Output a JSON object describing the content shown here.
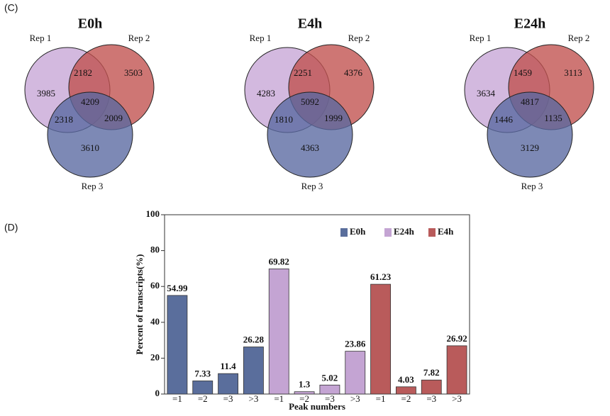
{
  "panel_labels": [
    "(C)",
    "(D)"
  ],
  "chart_data": [
    {
      "type": "venn",
      "title": "E0h",
      "sets": [
        "Rep 1",
        "Rep 2",
        "Rep 3"
      ],
      "colors": [
        "#c6a5d6",
        "#c0504d",
        "#5868a0"
      ],
      "values": {
        "1": 3985,
        "2": 3503,
        "3": 3610,
        "12": 2182,
        "13": 2318,
        "23": 2009,
        "123": 4209
      }
    },
    {
      "type": "venn",
      "title": "E4h",
      "sets": [
        "Rep 1",
        "Rep 2",
        "Rep 3"
      ],
      "colors": [
        "#c6a5d6",
        "#c0504d",
        "#5868a0"
      ],
      "values": {
        "1": 4283,
        "2": 4376,
        "3": 4363,
        "12": 2251,
        "13": 1810,
        "23": 1999,
        "123": 5092
      }
    },
    {
      "type": "venn",
      "title": "E24h",
      "sets": [
        "Rep 1",
        "Rep 2",
        "Rep 3"
      ],
      "colors": [
        "#c6a5d6",
        "#c0504d",
        "#5868a0"
      ],
      "values": {
        "1": 3634,
        "2": 3113,
        "3": 3129,
        "12": 1459,
        "13": 1446,
        "23": 1135,
        "123": 4817
      }
    },
    {
      "type": "bar",
      "y_label": "Percent of transcripts(%)",
      "x_label": "Peak numbers",
      "categories": [
        "=1",
        "=2",
        "=3",
        ">3"
      ],
      "series": [
        {
          "name": "E0h",
          "color": "#5a6e9c",
          "values": [
            54.99,
            7.33,
            11.4,
            26.28
          ]
        },
        {
          "name": "E24h",
          "color": "#c4a4d3",
          "values": [
            69.82,
            1.3,
            5.02,
            23.86
          ]
        },
        {
          "name": "E4h",
          "color": "#b95b5b",
          "values": [
            61.23,
            4.03,
            7.82,
            26.92
          ]
        }
      ],
      "ylim": [
        0,
        100
      ],
      "yticks": [
        0,
        20,
        40,
        60,
        80,
        100
      ],
      "legend": "upper right"
    }
  ]
}
